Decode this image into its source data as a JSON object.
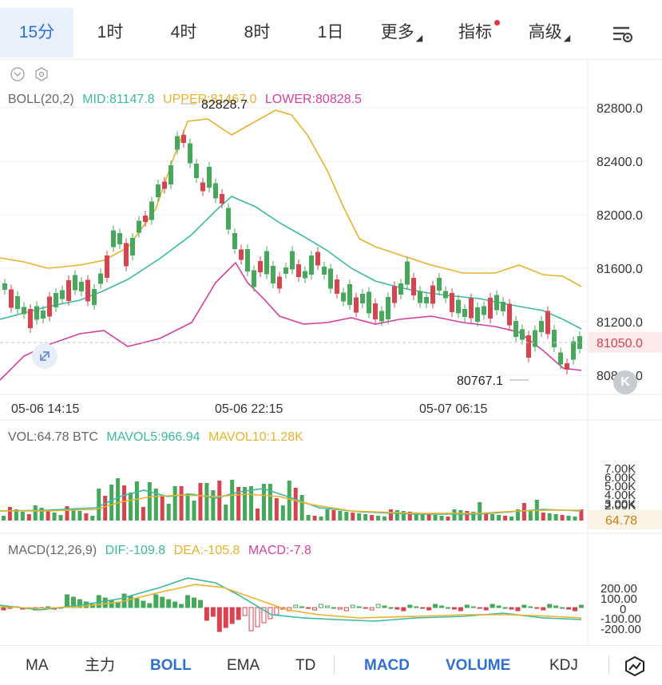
{
  "timeframes": [
    {
      "label": "15分",
      "active": true
    },
    {
      "label": "1时",
      "active": false
    },
    {
      "label": "4时",
      "active": false
    },
    {
      "label": "8时",
      "active": false
    },
    {
      "label": "1日",
      "active": false
    },
    {
      "label": "更多",
      "active": false,
      "dropdown": true
    },
    {
      "label": "指标",
      "active": false,
      "dot": true
    },
    {
      "label": "高级",
      "active": false,
      "dropdown": true
    }
  ],
  "boll_legend": {
    "label": "BOLL(20,2)",
    "mid": "MID:81147.8",
    "upper": "UPPER:81467.0",
    "lower": "LOWER:80828.5"
  },
  "price_axis": [
    "82800.0",
    "82400.0",
    "82000.0",
    "81600.0",
    "81200.0",
    "80800.0"
  ],
  "current_price": "81050.0",
  "high_marker": "82828.7",
  "low_marker": "80767.1",
  "time_axis": [
    "05-06 14:15",
    "05-06 22:15",
    "05-07 06:15"
  ],
  "vol_legend": {
    "label": "VOL:64.78 BTC",
    "mavol5": "MAVOL5:966.94",
    "mavol10": "MAVOL10:1.28K"
  },
  "vol_axis": [
    "7.00K",
    "6.00K",
    "5.00K",
    "4.00K",
    "3.00K",
    "2.00K"
  ],
  "vol_current": "64.78",
  "macd_legend": {
    "label": "MACD(12,26,9)",
    "dif": "DIF:-109.8",
    "dea": "DEA:-105.8",
    "macd": "MACD:-7.8"
  },
  "macd_axis": [
    "200.00",
    "100.00",
    "0",
    "-100.00",
    "-200.00"
  ],
  "indicators": [
    {
      "label": "MA",
      "on": false
    },
    {
      "label": "主力",
      "on": false
    },
    {
      "label": "BOLL",
      "on": true
    },
    {
      "label": "EMA",
      "on": false
    },
    {
      "label": "TD",
      "on": false
    },
    {
      "label": "MACD",
      "on": true
    },
    {
      "label": "VOLUME",
      "on": true
    },
    {
      "label": "KDJ",
      "on": false
    }
  ],
  "colors": {
    "up": "#45a85a",
    "down": "#d9434f",
    "mid": "#3bb9a1",
    "upper": "#e8b22c",
    "lower": "#d63f9c",
    "accent": "#2f6fd1"
  }
}
